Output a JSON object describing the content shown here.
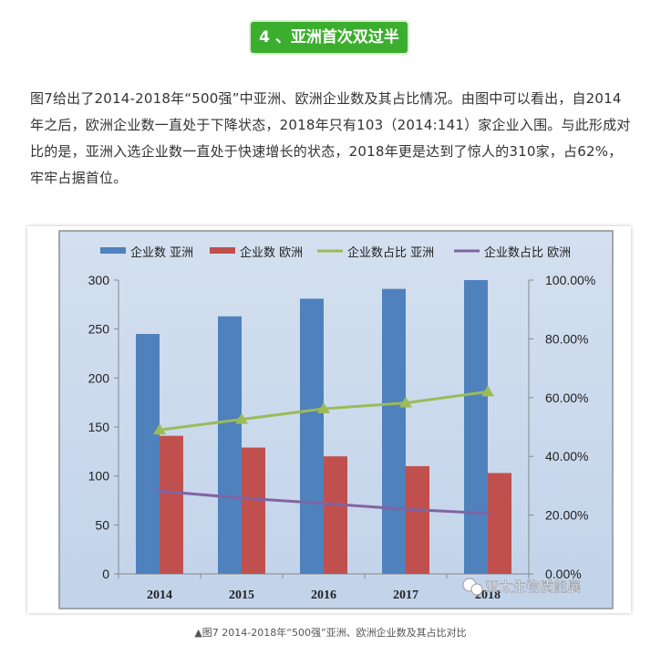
{
  "header": {
    "title": "4 、亚洲首次双过半"
  },
  "paragraph": "图7给出了2014-2018年“500强”中亚洲、欧洲企业数及其占比情况。由图中可以看出，自2014年之后，欧洲企业数一直处于下降状态，2018年只有103（2014:141）家企业入围。与此形成对比的是，亚洲入选企业数一直处于快速增长的状态，2018年更是达到了惊人的310家，占62%，牢牢占据首位。",
  "caption": "▲图7 2014-2018年“500强”亚洲、欧洲企业数及其占比对比",
  "watermark": "亚太生物质能展",
  "colors": {
    "asia_bar": "#4f81bd",
    "europe_bar": "#c0504d",
    "asia_line": "#9bbb59",
    "europe_line": "#8064a2",
    "banner": "#3cae2e"
  },
  "chart_data": {
    "type": "bar+line",
    "categories": [
      "2014",
      "2015",
      "2016",
      "2017",
      "2018"
    ],
    "series": [
      {
        "name": "企业数 亚洲",
        "type": "bar",
        "axis": "left",
        "values": [
          245,
          263,
          281,
          291,
          310
        ]
      },
      {
        "name": "企业数 欧洲",
        "type": "bar",
        "axis": "left",
        "values": [
          141,
          129,
          120,
          110,
          103
        ]
      },
      {
        "name": "企业数占比 亚洲",
        "type": "line",
        "axis": "right",
        "values": [
          49.0,
          52.6,
          56.2,
          58.2,
          62.0
        ]
      },
      {
        "name": "企业数占比 欧洲",
        "type": "line",
        "axis": "right",
        "values": [
          28.2,
          25.8,
          24.0,
          22.0,
          20.6
        ]
      }
    ],
    "ylim": [
      0,
      300
    ],
    "yticks": [
      "0",
      "50",
      "100",
      "150",
      "200",
      "250",
      "300"
    ],
    "y2lim": [
      0,
      100
    ],
    "y2ticks": [
      "0.00%",
      "20.00%",
      "40.00%",
      "60.00%",
      "80.00%",
      "100.00%"
    ],
    "legend": "top",
    "grid": false
  }
}
